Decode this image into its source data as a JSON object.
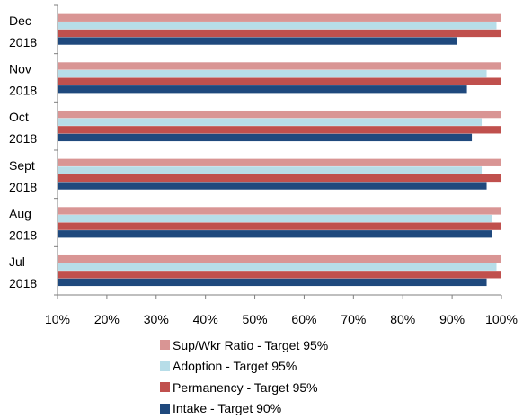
{
  "chart_data": {
    "type": "bar",
    "orientation": "horizontal",
    "categories": [
      "Jul 2018",
      "Aug 2018",
      "Sept 2018",
      "Oct 2018",
      "Nov 2018",
      "Dec 2018"
    ],
    "category_lines": [
      [
        "Jul",
        "2018"
      ],
      [
        "Aug",
        "2018"
      ],
      [
        "Sept",
        "2018"
      ],
      [
        "Oct",
        "2018"
      ],
      [
        "Nov",
        "2018"
      ],
      [
        "Dec",
        "2018"
      ]
    ],
    "series": [
      {
        "name": "Sup/Wkr Ratio - Target 95%",
        "color": "#D99594",
        "values": [
          100,
          100,
          100,
          100,
          100,
          100
        ]
      },
      {
        "name": "Adoption - Target 95%",
        "color": "#B7DDE8",
        "values": [
          99,
          98,
          96,
          96,
          97,
          99
        ]
      },
      {
        "name": "Permanency - Target 95%",
        "color": "#C0504D",
        "values": [
          100,
          100,
          100,
          100,
          100,
          100
        ]
      },
      {
        "name": "Intake - Target 90%",
        "color": "#1F497D",
        "values": [
          97,
          98,
          97,
          94,
          93,
          91
        ]
      }
    ],
    "xlim": [
      10,
      100
    ],
    "xticks": [
      10,
      20,
      30,
      40,
      50,
      60,
      70,
      80,
      90,
      100
    ],
    "xtick_labels": [
      "10%",
      "20%",
      "30%",
      "40%",
      "50%",
      "60%",
      "70%",
      "80%",
      "90%",
      "100%"
    ],
    "grid": false,
    "legend_position": "bottom"
  }
}
